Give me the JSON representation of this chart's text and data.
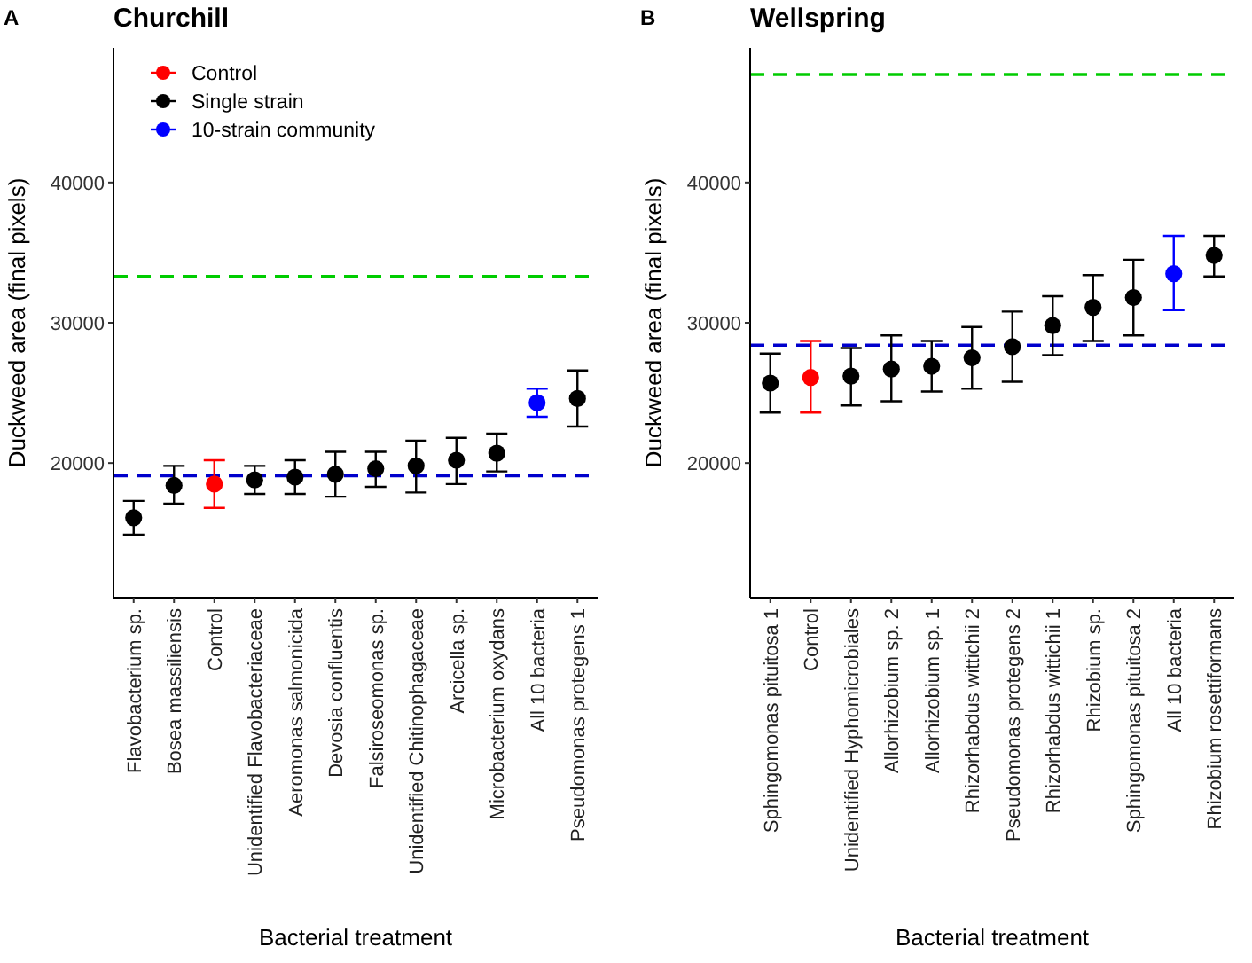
{
  "chart_data": [
    {
      "type": "scatter",
      "title": "Churchill",
      "annotations": [
        "A"
      ],
      "xlabel": "Bacterial treatment",
      "ylabel": "Duckweed area (final pixels)",
      "categories": [
        "Flavobacterium sp.",
        "Bosea massiliensis",
        "Control",
        "Unidentified Flavobacteriaceae",
        "Aeromonas salmonicida",
        "Devosia confluentis",
        "Falsiroseomonas sp.",
        "Unidentified Chitinophagaceae",
        "Arcicella sp.",
        "Microbacterium oxydans",
        "All 10 bacteria",
        "Pseudomonas protegens 1"
      ],
      "series": [
        {
          "name": "Control",
          "color": "#ff0000",
          "values": [
            null,
            null,
            18500,
            null,
            null,
            null,
            null,
            null,
            null,
            null,
            null,
            null
          ],
          "errors": [
            null,
            null,
            [
              16800,
              20200
            ],
            null,
            null,
            null,
            null,
            null,
            null,
            null,
            null,
            null
          ]
        },
        {
          "name": "Single strain",
          "color": "#000000",
          "values": [
            16100,
            18400,
            null,
            18800,
            19000,
            19200,
            19600,
            19800,
            20200,
            20700,
            null,
            24600
          ],
          "errors": [
            [
              14900,
              17300
            ],
            [
              17100,
              19800
            ],
            null,
            [
              17800,
              19800
            ],
            [
              17800,
              20200
            ],
            [
              17600,
              20800
            ],
            [
              18300,
              20800
            ],
            [
              17900,
              21600
            ],
            [
              18500,
              21800
            ],
            [
              19400,
              22100
            ],
            null,
            [
              22600,
              26600
            ]
          ]
        },
        {
          "name": "10-strain community",
          "color": "#0000ff",
          "values": [
            null,
            null,
            null,
            null,
            null,
            null,
            null,
            null,
            null,
            null,
            24300,
            null
          ],
          "errors": [
            null,
            null,
            null,
            null,
            null,
            null,
            null,
            null,
            null,
            null,
            [
              23300,
              25300
            ],
            null
          ]
        }
      ],
      "ylim": [
        10400,
        49600
      ],
      "yticks": [
        20000,
        30000,
        40000
      ],
      "ref_lines": [
        {
          "axis": "y",
          "value": 33300,
          "color": "#00cc00",
          "line_style": "dashed"
        },
        {
          "axis": "y",
          "value": 19100,
          "color": "#0000cc",
          "line_style": "dashed"
        }
      ],
      "grid": false,
      "legend": "top left",
      "marker": "circle"
    },
    {
      "type": "scatter",
      "title": "Wellspring",
      "annotations": [
        "B"
      ],
      "xlabel": "Bacterial treatment",
      "ylabel": "Duckweed area (final pixels)",
      "categories": [
        "Sphingomonas pituitosa 1",
        "Control",
        "Unidentified Hyphomicrobiales",
        "Allorhizobium sp. 2",
        "Allorhizobium sp. 1",
        "Rhizorhabdus wittichii 2",
        "Pseudomonas protegens 2",
        "Rhizorhabdus wittichii 1",
        "Rhizobium sp.",
        "Sphingomonas pituitosa 2",
        "All 10 bacteria",
        "Rhizobium rosettiformans"
      ],
      "series": [
        {
          "color": "#ff0000",
          "values": [
            null,
            26100,
            null,
            null,
            null,
            null,
            null,
            null,
            null,
            null,
            null,
            null
          ],
          "errors": [
            null,
            [
              23600,
              28700
            ],
            null,
            null,
            null,
            null,
            null,
            null,
            null,
            null,
            null,
            null
          ]
        },
        {
          "color": "#000000",
          "values": [
            25700,
            null,
            26200,
            26700,
            26900,
            27500,
            28300,
            29800,
            31100,
            31800,
            null,
            34800
          ],
          "errors": [
            [
              23600,
              27800
            ],
            null,
            [
              24100,
              28200
            ],
            [
              24400,
              29100
            ],
            [
              25100,
              28700
            ],
            [
              25300,
              29700
            ],
            [
              25800,
              30800
            ],
            [
              27700,
              31900
            ],
            [
              28700,
              33400
            ],
            [
              29100,
              34500
            ],
            null,
            [
              33300,
              36200
            ]
          ]
        },
        {
          "color": "#0000ff",
          "values": [
            null,
            null,
            null,
            null,
            null,
            null,
            null,
            null,
            null,
            null,
            33500,
            null
          ],
          "errors": [
            null,
            null,
            null,
            null,
            null,
            null,
            null,
            null,
            null,
            null,
            [
              30900,
              36200
            ],
            null
          ]
        }
      ],
      "ylim": [
        10400,
        49600
      ],
      "yticks": [
        20000,
        30000,
        40000
      ],
      "ref_lines": [
        {
          "axis": "y",
          "value": 47700,
          "color": "#00cc00",
          "line_style": "dashed"
        },
        {
          "axis": "y",
          "value": 28400,
          "color": "#0000cc",
          "line_style": "dashed"
        }
      ],
      "grid": false,
      "legend": false,
      "marker": "circle"
    }
  ]
}
